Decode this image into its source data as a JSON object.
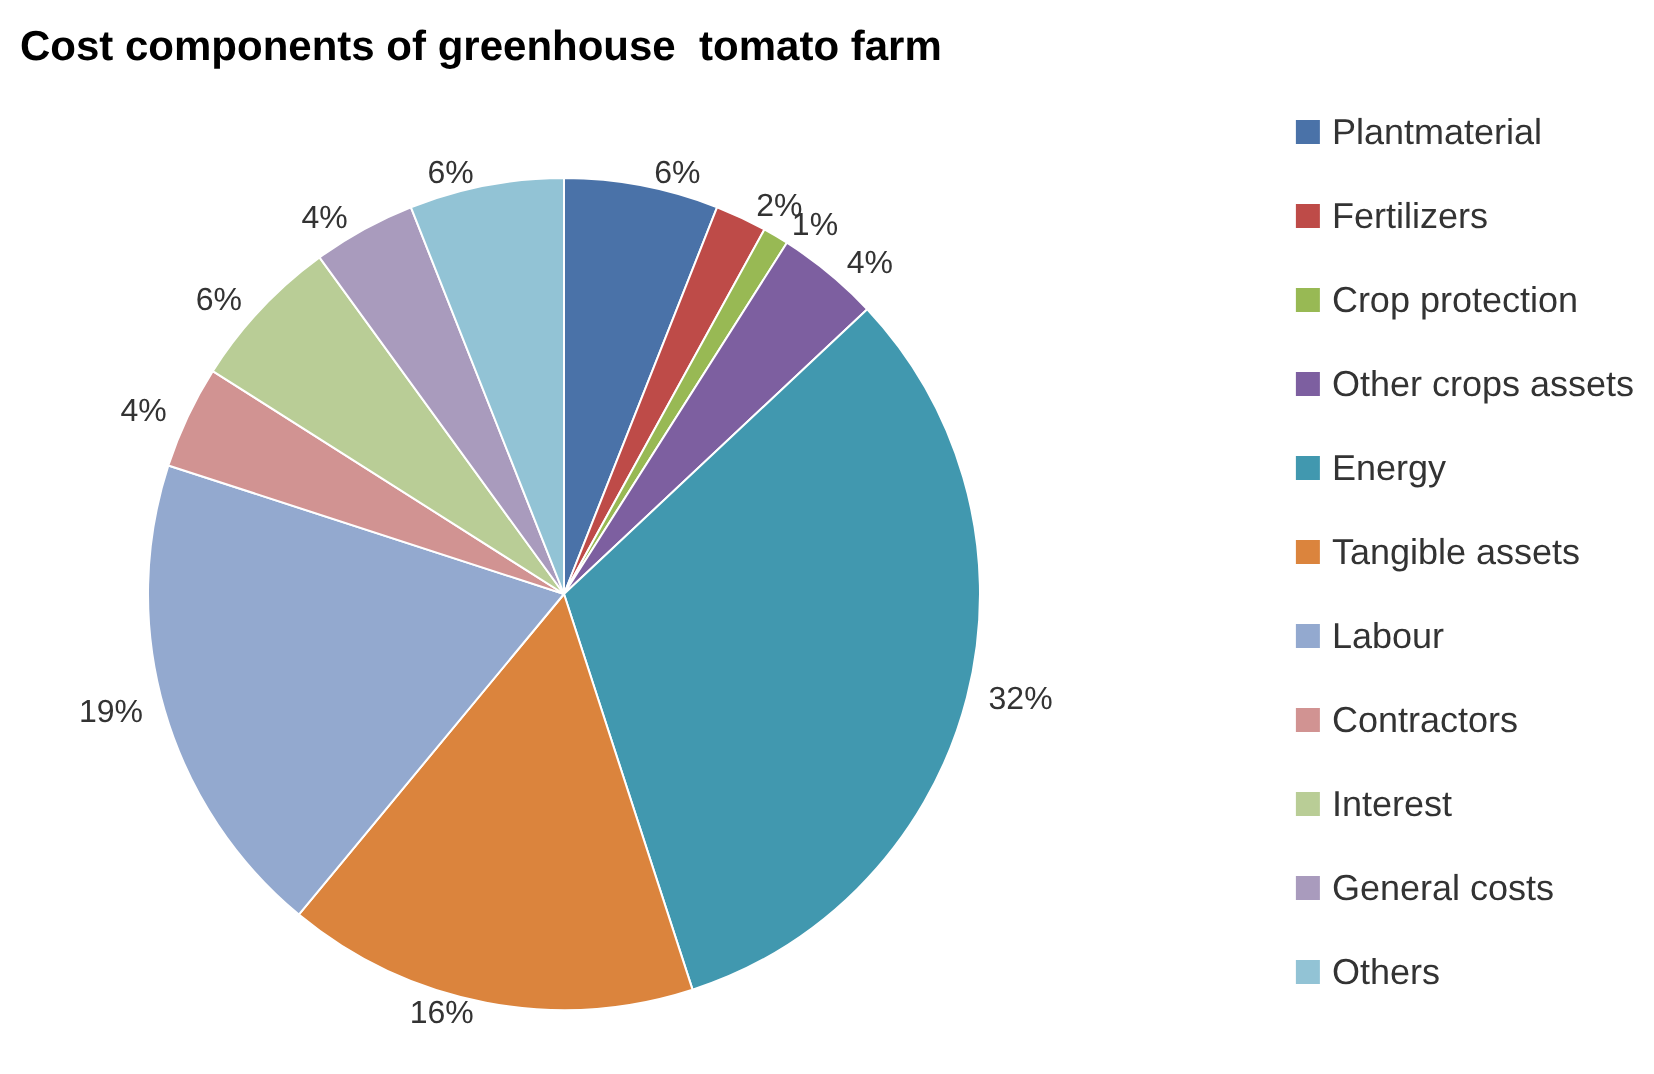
{
  "chart_data": {
    "type": "pie",
    "title": "Cost components of greenhouse  tomato farm",
    "categories": [
      "Plantmaterial",
      "Fertilizers",
      "Crop protection",
      "Other crops assets",
      "Energy",
      "Tangible assets",
      "Labour",
      "Contractors",
      "Interest",
      "General costs",
      "Others"
    ],
    "values": [
      6,
      2,
      1,
      4,
      32,
      16,
      19,
      4,
      6,
      4,
      6
    ],
    "value_labels": [
      "6%",
      "2%",
      "1%",
      "4%",
      "32%",
      "16%",
      "19%",
      "4%",
      "6%",
      "4%",
      "6%"
    ],
    "colors": [
      "#4a72a8",
      "#be4b48",
      "#98b954",
      "#7d5fa0",
      "#4198af",
      "#db843d",
      "#93a9cf",
      "#d19392",
      "#b9cd96",
      "#a99bbd",
      "#92c3d5"
    ],
    "legend": "right"
  }
}
